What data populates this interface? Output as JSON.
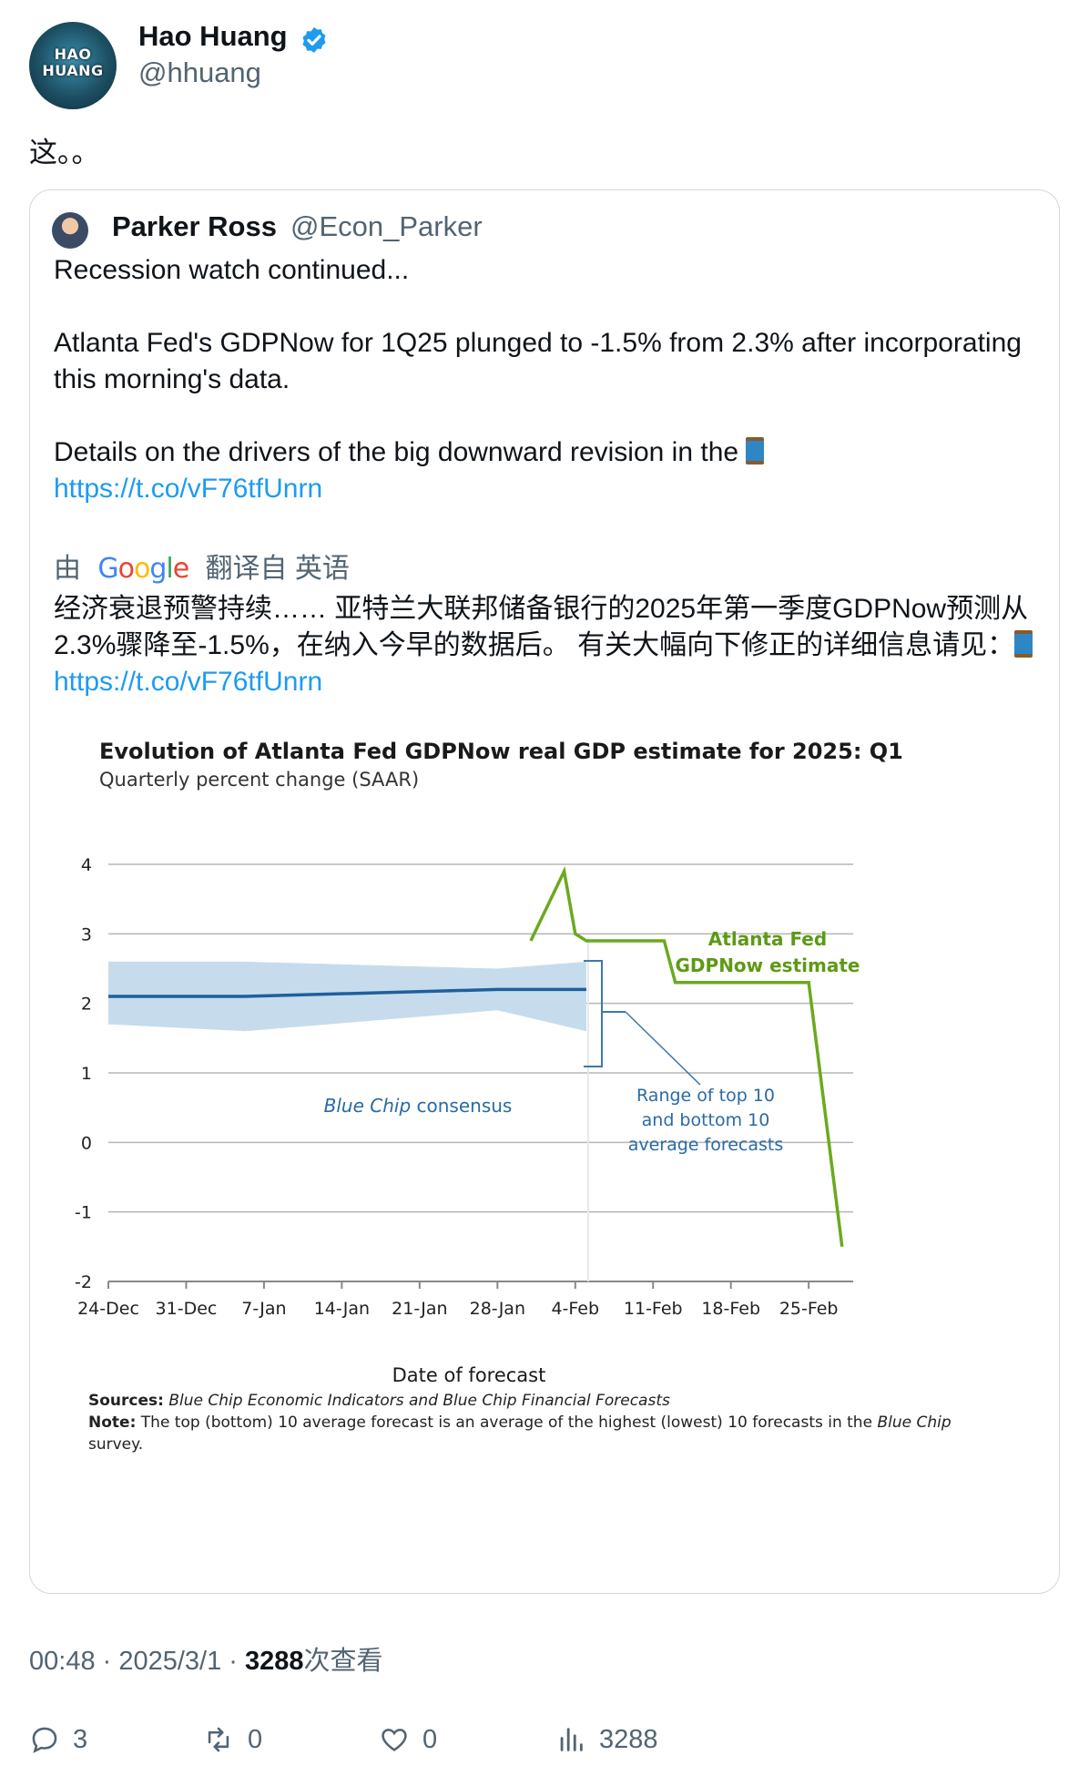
{
  "tweet": {
    "author_name": "Hao Huang",
    "author_handle": "@hhuang",
    "avatar_text_line1": "HAO",
    "avatar_text_line2": "HUANG",
    "text": "这。。",
    "timestamp": "00:48 · 2025/3/1 · ",
    "views_count": "3288",
    "views_label": "次查看"
  },
  "quote": {
    "author_name": "Parker Ross",
    "author_handle": "@Econ_Parker",
    "line1": "Recession watch continued...",
    "line2": "Atlanta Fed's GDPNow for 1Q25 plunged to -1.5% from 2.3% after incorporating this morning's data.",
    "line3": "Details on the drivers of the big downward revision in the",
    "link": "https://t.co/vF76tfUnrn",
    "translate_prefix": "由",
    "translate_brand": "Google",
    "translate_suffix": "翻译自 英语",
    "translated_text": "经济衰退预警持续…… 亚特兰大联邦储备银行的2025年第一季度GDPNow预测从2.3%骤降至-1.5%，在纳入今早的数据后。 有关大幅向下修正的详细信息请见："
  },
  "actions": {
    "replies": "3",
    "retweets": "0",
    "likes": "0",
    "views": "3288"
  },
  "colors": {
    "gdpnow_line": "#6aaa1e",
    "consensus_line": "#1f5f9e",
    "range_band": "#c6dcec",
    "link": "#1d9bf0"
  },
  "chart_data": {
    "type": "line",
    "title": "Evolution of Atlanta Fed GDPNow real GDP estimate for 2025: Q1",
    "subtitle": "Quarterly percent change (SAAR)",
    "xlabel": "Date of forecast",
    "ylim": [
      -2,
      4
    ],
    "yticks": [
      "4",
      "3",
      "2",
      "1",
      "0",
      "-1",
      "-2"
    ],
    "ytick_values": [
      4,
      3,
      2,
      1,
      0,
      -1,
      -2
    ],
    "xticks": [
      "24-Dec",
      "31-Dec",
      "7-Jan",
      "14-Jan",
      "21-Jan",
      "28-Jan",
      "4-Feb",
      "11-Feb",
      "18-Feb",
      "25-Feb"
    ],
    "xtick_days": [
      0,
      7,
      14,
      21,
      28,
      35,
      42,
      49,
      56,
      63
    ],
    "series": [
      {
        "name": "Atlanta Fed GDPNow estimate",
        "label_line1": "Atlanta Fed",
        "label_line2": "GDPNow estimate",
        "x": [
          38,
          41,
          42,
          43,
          50,
          51,
          63,
          66
        ],
        "y": [
          2.9,
          3.9,
          3.0,
          2.9,
          2.9,
          2.3,
          2.3,
          -1.5
        ]
      },
      {
        "name": "Blue Chip consensus",
        "label_italic": "Blue Chip",
        "label_rest": " consensus",
        "x": [
          0,
          12.3,
          35,
          43
        ],
        "y": [
          2.1,
          2.1,
          2.2,
          2.2
        ]
      }
    ],
    "range_band": {
      "x": [
        0,
        12.3,
        35,
        43
      ],
      "upper": [
        2.6,
        2.6,
        2.5,
        2.6
      ],
      "lower": [
        1.7,
        1.6,
        1.9,
        1.6
      ],
      "label_lines": [
        "Range of top 10",
        "and bottom 10",
        "average forecasts"
      ]
    },
    "sources_label": "Sources:",
    "sources_text": "Blue Chip Economic Indicators and Blue Chip Financial Forecasts",
    "note_label": "Note:",
    "note_text_1": "The top (bottom) 10 average forecast is an average of the highest (lowest) 10 forecasts in the ",
    "note_text_italic": "Blue Chip",
    "note_text_2": "survey."
  }
}
